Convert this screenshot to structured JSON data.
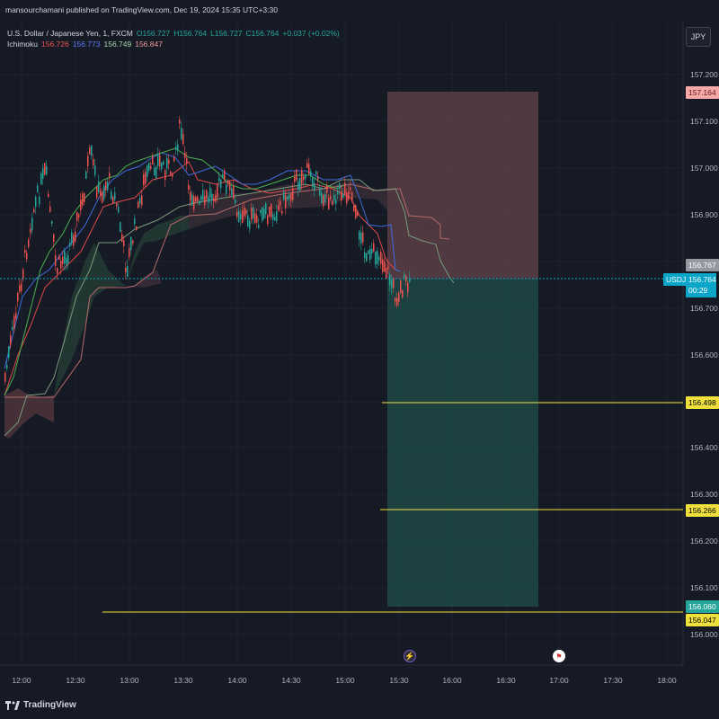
{
  "publisher": "mansourchamani published on TradingView.com, Dec 19, 2024 15:35 UTC+3:30",
  "legend": {
    "title": "U.S. Dollar / Japanese Yen, 1, FXCM",
    "open": "O156.727",
    "high": "H156.764",
    "low": "L156.727",
    "close": "C156.764",
    "change": "+0.037 (+0.02%)",
    "indicator": "Ichimoku",
    "ichimoku_values": [
      "156.726",
      "156.773",
      "156.749",
      "156.847"
    ]
  },
  "currency": "JPY",
  "price_axis": [
    "157.200",
    "157.100",
    "157.000",
    "156.900",
    "156.700",
    "156.600",
    "156.400",
    "156.300",
    "156.200",
    "156.100",
    "156.000"
  ],
  "time_axis": [
    "12:00",
    "12:30",
    "13:00",
    "13:30",
    "14:00",
    "14:30",
    "15:00",
    "15:30",
    "16:00",
    "16:30",
    "17:00",
    "17:30",
    "18:00"
  ],
  "labels": {
    "stop_loss": "157.164",
    "entry": "156.767",
    "current_price": "156.764",
    "countdown": "00:29",
    "symbol": "USDJPY",
    "tp1": "156.498",
    "tp2": "156.266",
    "target": "156.060",
    "tp3": "156.047"
  },
  "colors": {
    "background": "#161a25",
    "up_candle": "#26a69a",
    "down_candle": "#ef5350",
    "current_price": "#0aa5c7",
    "stop_zone": "#5a3f46",
    "target_zone": "#1d4945",
    "horizontal_line": "#f0e03c"
  },
  "footer_brand": "TradingView"
}
